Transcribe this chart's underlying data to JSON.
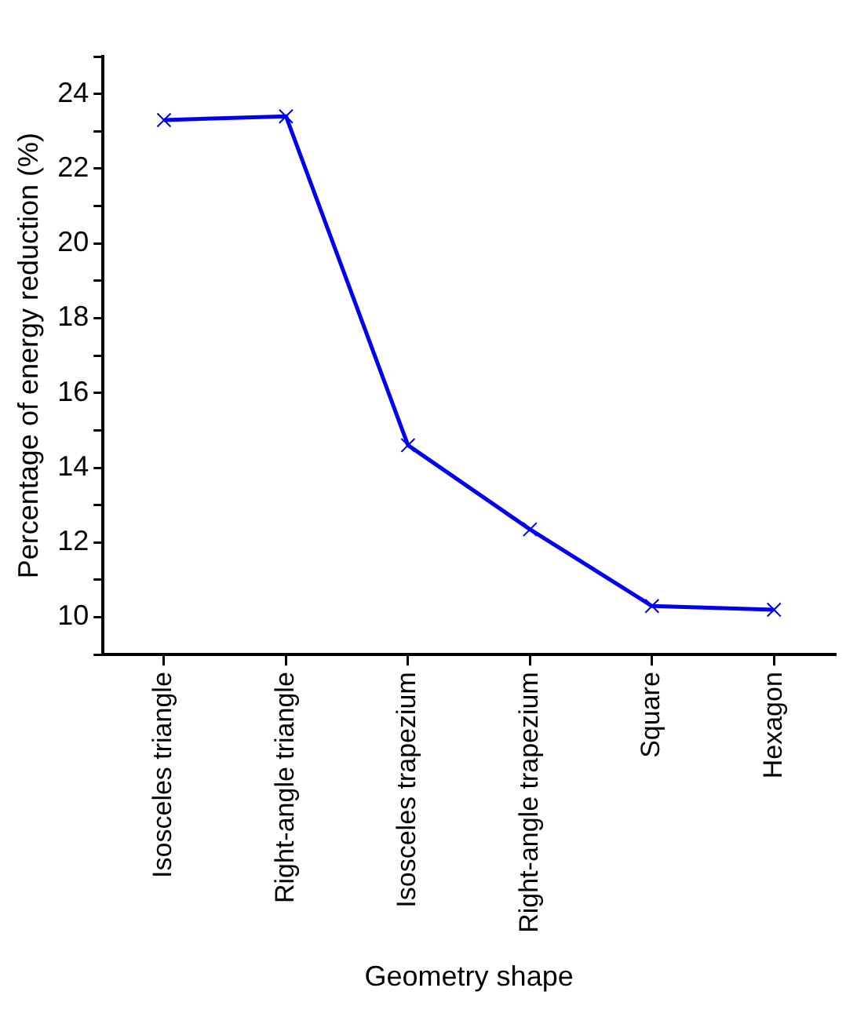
{
  "chart_data": {
    "type": "line",
    "xlabel": "Geometry shape",
    "ylabel": "Percentage of energy reduction (%)",
    "categories": [
      "Isosceles triangle",
      "Right-angle triangle",
      "Isosceles trapezium",
      "Right-angle trapezium",
      "Square",
      "Hexagon"
    ],
    "series": [
      {
        "color": "#0000ee",
        "values": [
          23.3,
          23.4,
          14.6,
          12.35,
          10.3,
          10.2
        ]
      }
    ],
    "ylim": [
      9,
      25
    ],
    "yticks": [
      {
        "value": 9,
        "label": null
      },
      10,
      {
        "value": 11,
        "label": null
      },
      12,
      {
        "value": 13,
        "label": null
      },
      14,
      {
        "value": 15,
        "label": null
      },
      16,
      {
        "value": 17,
        "label": null
      },
      18,
      {
        "value": 19,
        "label": null
      },
      20,
      {
        "value": 21,
        "label": null
      },
      22,
      {
        "value": 23,
        "label": null
      },
      24,
      {
        "value": 25,
        "label": null
      }
    ],
    "grid": false,
    "legend": false,
    "marker": "cross",
    "line_style": "solid"
  }
}
